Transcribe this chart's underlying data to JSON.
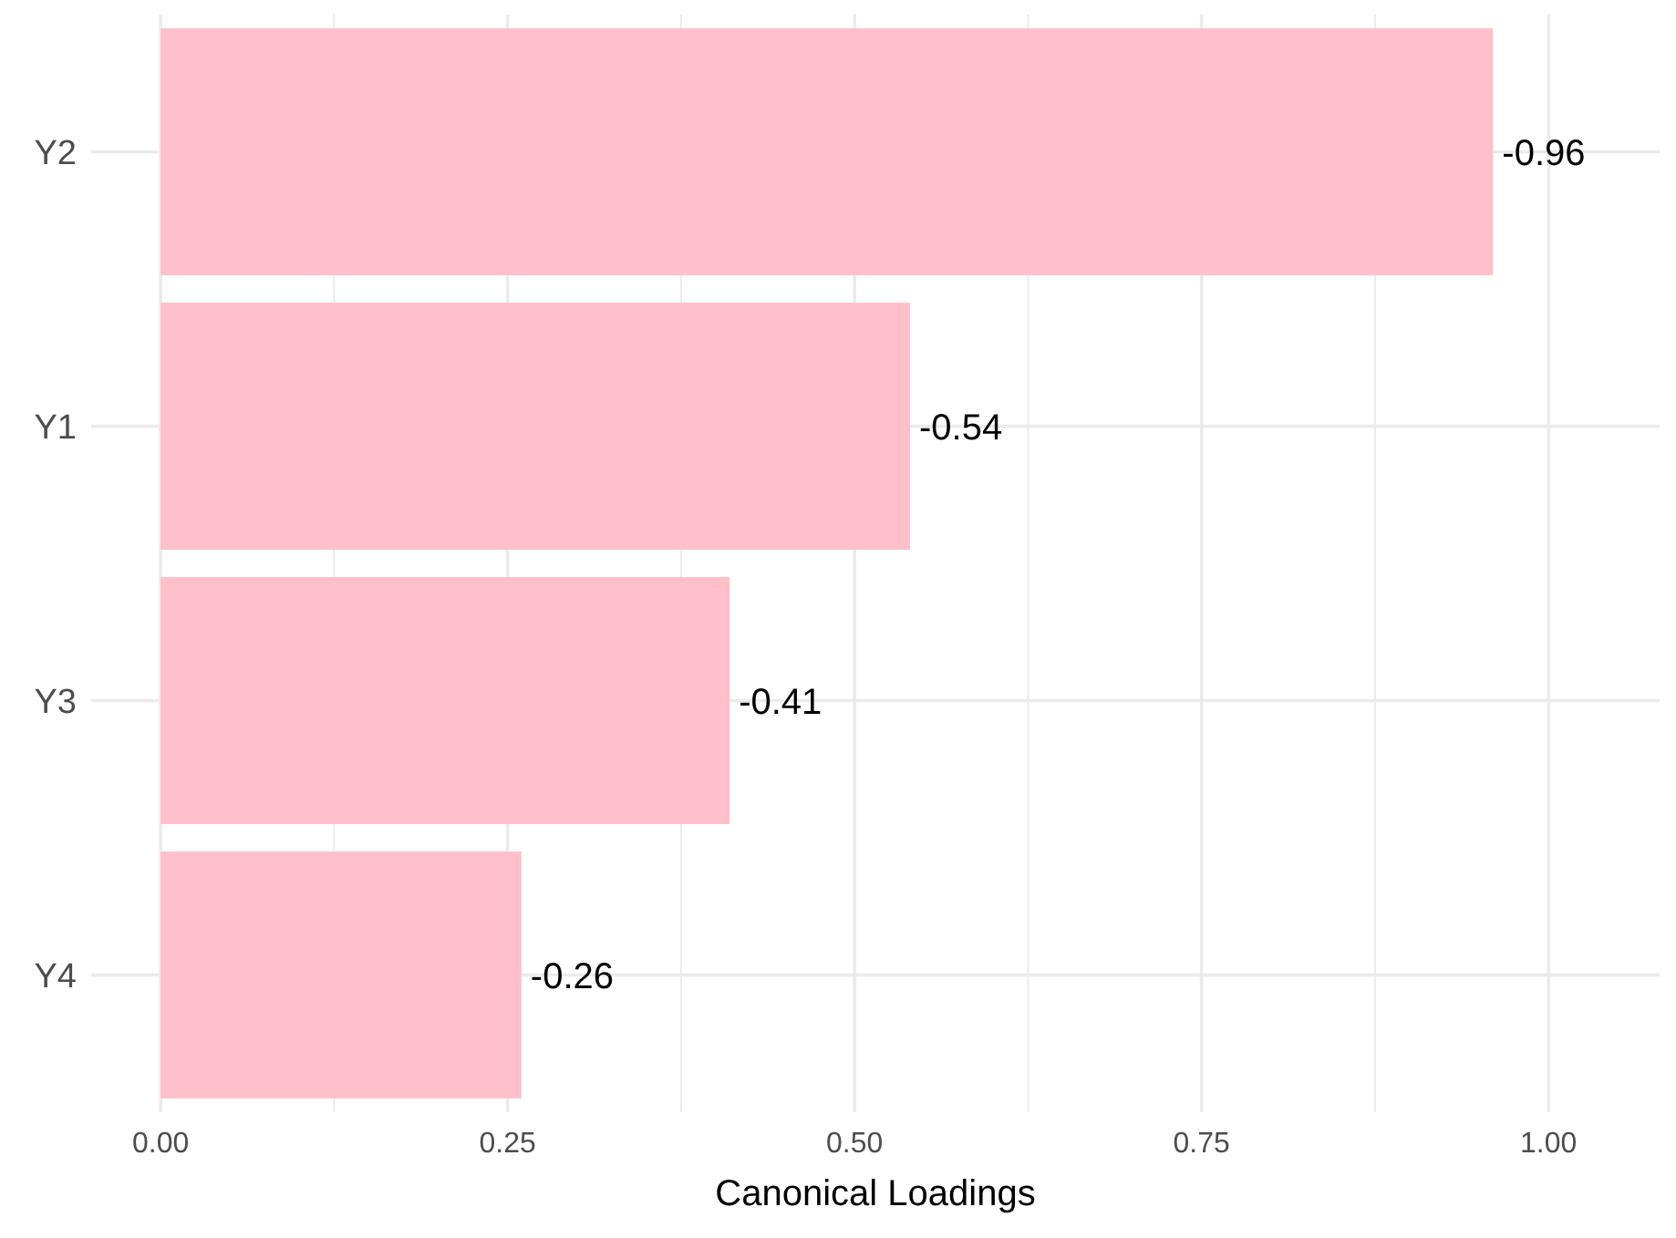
{
  "chart_data": {
    "type": "bar",
    "orientation": "horizontal",
    "xlabel": "Canonical Loadings",
    "categories": [
      "Y2",
      "Y1",
      "Y3",
      "Y4"
    ],
    "values": [
      -0.96,
      -0.54,
      -0.41,
      -0.26
    ],
    "base": [
      0.96,
      0.54,
      0.41,
      0.26
    ],
    "data_labels": true,
    "color": "#ffc0cb",
    "xlim": [
      -0.05,
      1.08
    ],
    "xticks": [
      {
        "value": 0,
        "label": "0.00"
      },
      {
        "value": 0.125,
        "label": null
      },
      {
        "value": 0.25,
        "label": "0.25"
      },
      {
        "value": 0.375,
        "label": null
      },
      {
        "value": 0.5,
        "label": "0.50"
      },
      {
        "value": 0.625,
        "label": null
      },
      {
        "value": 0.75,
        "label": "0.75"
      },
      {
        "value": 0.875,
        "label": null
      },
      {
        "value": 1,
        "label": "1.00"
      }
    ],
    "grid": true
  }
}
